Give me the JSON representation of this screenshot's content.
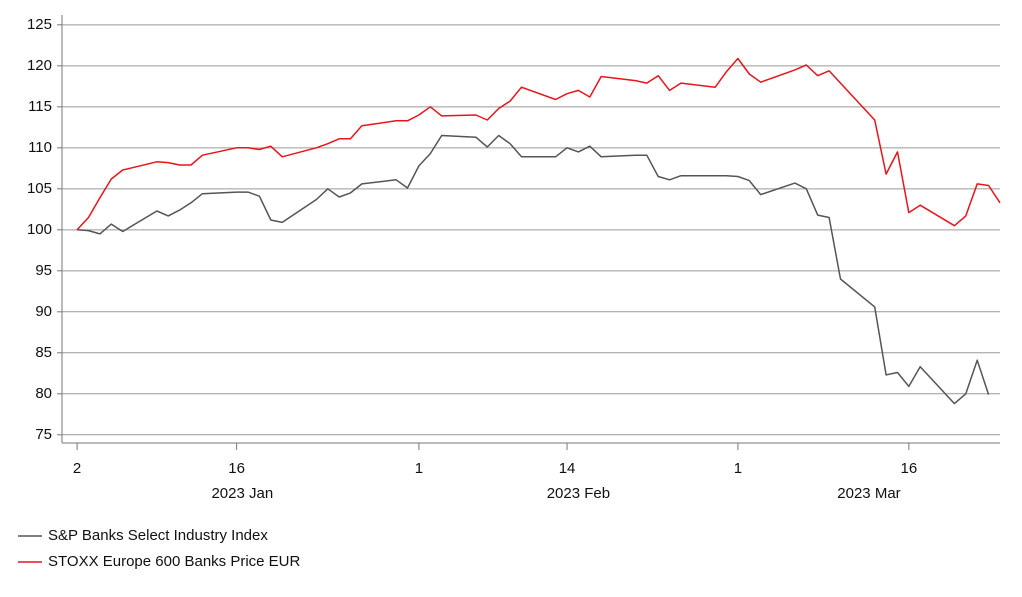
{
  "chart_data": {
    "type": "line",
    "x": [
      "2023-01-02",
      "2023-01-03",
      "2023-01-04",
      "2023-01-05",
      "2023-01-06",
      "2023-01-09",
      "2023-01-10",
      "2023-01-11",
      "2023-01-12",
      "2023-01-13",
      "2023-01-16",
      "2023-01-17",
      "2023-01-18",
      "2023-01-19",
      "2023-01-20",
      "2023-01-23",
      "2023-01-24",
      "2023-01-25",
      "2023-01-26",
      "2023-01-27",
      "2023-01-30",
      "2023-01-31",
      "2023-02-01",
      "2023-02-02",
      "2023-02-03",
      "2023-02-06",
      "2023-02-07",
      "2023-02-08",
      "2023-02-09",
      "2023-02-10",
      "2023-02-13",
      "2023-02-14",
      "2023-02-15",
      "2023-02-16",
      "2023-02-17",
      "2023-02-20",
      "2023-02-21",
      "2023-02-22",
      "2023-02-23",
      "2023-02-24",
      "2023-02-27",
      "2023-02-28",
      "2023-03-01",
      "2023-03-02",
      "2023-03-03",
      "2023-03-06",
      "2023-03-07",
      "2023-03-08",
      "2023-03-09",
      "2023-03-10",
      "2023-03-13",
      "2023-03-14",
      "2023-03-15",
      "2023-03-16",
      "2023-03-17",
      "2023-03-20",
      "2023-03-21",
      "2023-03-22",
      "2023-03-23",
      "2023-03-24"
    ],
    "series": [
      {
        "name": "S&P Banks Select Industry Index",
        "color": "#555555",
        "values": [
          100,
          99.9,
          99.5,
          100.7,
          99.8,
          102.3,
          101.7,
          102.4,
          103.3,
          104.4,
          104.6,
          104.6,
          104.1,
          101.2,
          100.9,
          103.7,
          105.0,
          104.0,
          104.5,
          105.6,
          106.1,
          105.1,
          107.8,
          109.3,
          111.5,
          111.3,
          110.1,
          111.5,
          110.5,
          108.9,
          108.9,
          110.0,
          109.5,
          110.2,
          108.9,
          109.1,
          109.1,
          106.5,
          106.1,
          106.6,
          106.6,
          106.6,
          106.5,
          106.0,
          104.3,
          105.7,
          105.0,
          101.8,
          101.5,
          94.0,
          90.6,
          82.3,
          82.6,
          80.9,
          83.3,
          78.8,
          80.0,
          84.1,
          79.9,
          null
        ]
      },
      {
        "name": "STOXX Europe 600 Banks Price EUR",
        "color": "#e8141b",
        "values": [
          100,
          101.5,
          103.9,
          106.2,
          107.3,
          108.3,
          108.2,
          107.9,
          107.9,
          109.1,
          110.0,
          110.0,
          109.8,
          110.2,
          108.9,
          110.0,
          110.5,
          111.1,
          111.1,
          112.7,
          113.3,
          113.3,
          114.0,
          115.0,
          113.9,
          114.0,
          113.4,
          114.8,
          115.7,
          117.4,
          115.9,
          116.6,
          117.0,
          116.2,
          118.7,
          118.2,
          117.9,
          118.8,
          117.0,
          117.9,
          117.4,
          119.3,
          120.9,
          119.0,
          118.0,
          119.5,
          120.1,
          118.8,
          119.4,
          117.9,
          113.4,
          106.8,
          109.5,
          102.1,
          103.0,
          100.5,
          101.7,
          105.6,
          105.4,
          103.3
        ]
      }
    ],
    "xlim": [
      "2023-01-01",
      "2023-03-24"
    ],
    "xticks": [
      {
        "value": "2023-01-02",
        "label": "2"
      },
      {
        "value": "2023-01-16",
        "label": "16"
      },
      {
        "value": "2023-02-01",
        "label": "1"
      },
      {
        "value": "2023-02-14",
        "label": "14"
      },
      {
        "value": "2023-03-01",
        "label": "1"
      },
      {
        "value": "2023-03-16",
        "label": "16"
      }
    ],
    "x_groups": [
      "2023 Jan",
      "2023 Feb",
      "2023 Mar"
    ],
    "ylim": [
      74,
      126.2
    ],
    "yticks": [
      75,
      80,
      85,
      90,
      95,
      100,
      105,
      110,
      115,
      120,
      125
    ],
    "grid": true,
    "legend": "bottom-left"
  }
}
